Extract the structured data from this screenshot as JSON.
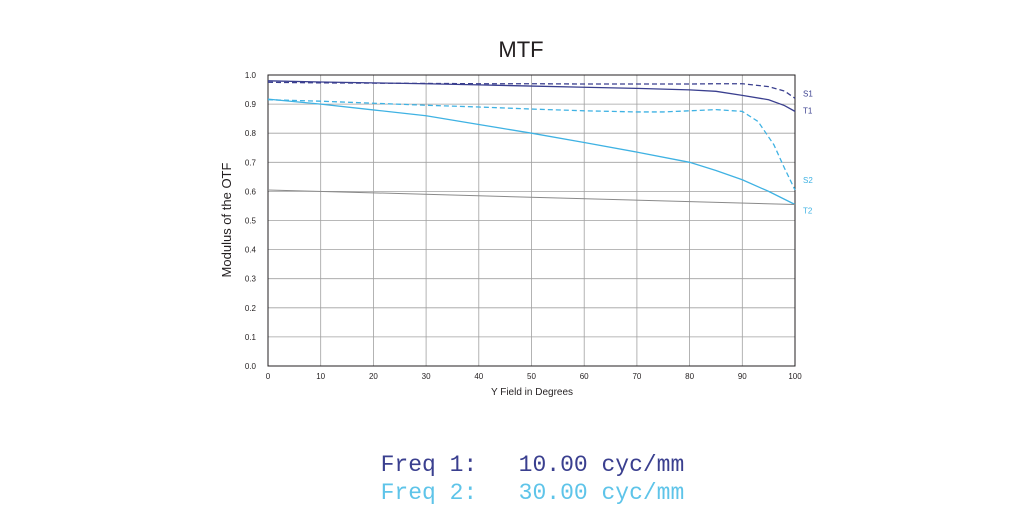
{
  "colors": {
    "series1": "#3a3f8f",
    "series2": "#3fb2e3",
    "reference": "#8a8a8a",
    "grid": "#a0a0a0",
    "axis": "#231f20"
  },
  "chart_data": {
    "type": "line",
    "title": "MTF",
    "xlabel": "Y Field in Degrees",
    "ylabel": "Modulus of the OTF",
    "xlim": [
      0,
      100
    ],
    "ylim": [
      0,
      1.0
    ],
    "xticks": [
      "0",
      "10",
      "20",
      "30",
      "40",
      "50",
      "60",
      "70",
      "80",
      "90",
      "100"
    ],
    "yticks": [
      "0.0",
      "0.1",
      "0.2",
      "0.3",
      "0.4",
      "0.5",
      "0.6",
      "0.7",
      "0.8",
      "0.9",
      "1.0"
    ],
    "grid": true,
    "series": [
      {
        "name": "S1",
        "color": "#3a3f8f",
        "dash": true,
        "x": [
          0,
          10,
          20,
          30,
          40,
          50,
          60,
          70,
          80,
          85,
          90,
          95,
          98,
          100
        ],
        "y": [
          0.975,
          0.973,
          0.972,
          0.971,
          0.97,
          0.97,
          0.969,
          0.969,
          0.969,
          0.97,
          0.97,
          0.96,
          0.945,
          0.92
        ]
      },
      {
        "name": "T1",
        "color": "#3a3f8f",
        "dash": false,
        "x": [
          0,
          10,
          20,
          30,
          40,
          50,
          60,
          70,
          80,
          85,
          90,
          95,
          98,
          100
        ],
        "y": [
          0.98,
          0.976,
          0.973,
          0.97,
          0.966,
          0.962,
          0.958,
          0.954,
          0.949,
          0.944,
          0.93,
          0.915,
          0.895,
          0.875
        ]
      },
      {
        "name": "S2",
        "color": "#3fb2e3",
        "dash": true,
        "x": [
          0,
          10,
          20,
          30,
          40,
          50,
          60,
          70,
          75,
          80,
          85,
          90,
          93,
          96,
          98,
          100
        ],
        "y": [
          0.915,
          0.91,
          0.903,
          0.896,
          0.89,
          0.883,
          0.877,
          0.873,
          0.873,
          0.877,
          0.881,
          0.875,
          0.84,
          0.76,
          0.68,
          0.605
        ]
      },
      {
        "name": "T2",
        "color": "#3fb2e3",
        "dash": false,
        "x": [
          0,
          10,
          20,
          30,
          40,
          50,
          60,
          70,
          80,
          85,
          90,
          95,
          100
        ],
        "y": [
          0.917,
          0.9,
          0.88,
          0.86,
          0.83,
          0.8,
          0.768,
          0.735,
          0.7,
          0.672,
          0.64,
          0.6,
          0.555
        ]
      },
      {
        "name": "",
        "color": "#8a8a8a",
        "dash": false,
        "x": [
          0,
          100
        ],
        "y": [
          0.605,
          0.555
        ]
      }
    ]
  },
  "legend": {
    "lines": [
      {
        "label": "Freq 1:",
        "value": "10.00 cyc/mm",
        "color": "#3a3f8f"
      },
      {
        "label": "Freq 2:",
        "value": "30.00 cyc/mm",
        "color": "#5ec4e9"
      }
    ]
  }
}
